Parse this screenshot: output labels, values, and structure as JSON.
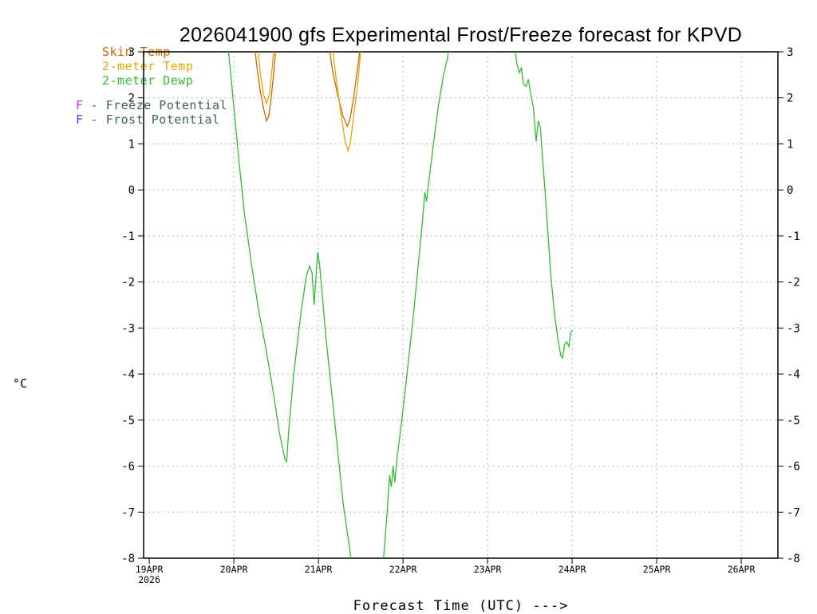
{
  "title": "2026041900 gfs Experimental Frost/Freeze forecast for KPVD",
  "axes": {
    "y_unit_label": "°C",
    "x_label": "Forecast Time (UTC) --->"
  },
  "legend": {
    "series": [
      {
        "label": "Skin Temp",
        "color": "#cc6600"
      },
      {
        "label": "2-meter Temp",
        "color": "#ddaa00"
      },
      {
        "label": "2-meter Dewp",
        "color": "#33bb33"
      }
    ],
    "flags": [
      {
        "letter": "F",
        "letter_color": "#cc33cc",
        "text": "- Freeze Potential"
      },
      {
        "letter": "F",
        "letter_color": "#4444ee",
        "text": "- Frost Potential"
      }
    ]
  },
  "chart_data": {
    "type": "line",
    "title": "2026041900 gfs Experimental Frost/Freeze forecast for KPVD",
    "xlabel": "Forecast Time (UTC) --->",
    "ylabel": "°C",
    "ylim": [
      -8,
      3
    ],
    "x_hours_visible": [
      -1.6,
      178.4
    ],
    "grid": "dotted",
    "legend_position": "top-left",
    "y_ticks": [
      {
        "value": 3,
        "label": "3"
      },
      {
        "value": 2,
        "label": "2"
      },
      {
        "value": 1,
        "label": "1"
      },
      {
        "value": 0,
        "label": "0"
      },
      {
        "value": -1,
        "label": "-1"
      },
      {
        "value": -2,
        "label": "-2"
      },
      {
        "value": -3,
        "label": "-3"
      },
      {
        "value": -4,
        "label": "-4"
      },
      {
        "value": -5,
        "label": "-5"
      },
      {
        "value": -6,
        "label": "-6"
      },
      {
        "value": -7,
        "label": "-7"
      },
      {
        "value": -8,
        "label": "-8"
      }
    ],
    "x_ticks": [
      {
        "hour": 0,
        "label": "19APR",
        "sublabel": "2026"
      },
      {
        "hour": 24,
        "label": "20APR"
      },
      {
        "hour": 48,
        "label": "21APR"
      },
      {
        "hour": 72,
        "label": "22APR"
      },
      {
        "hour": 96,
        "label": "23APR"
      },
      {
        "hour": 120,
        "label": "24APR"
      },
      {
        "hour": 144,
        "label": "25APR"
      },
      {
        "hour": 168,
        "label": "26APR"
      }
    ],
    "series": [
      {
        "name": "Skin Temp",
        "color": "#cc6600",
        "points": [
          [
            29.5,
            3.4
          ],
          [
            30.5,
            2.7
          ],
          [
            31.5,
            2.15
          ],
          [
            32.5,
            1.75
          ],
          [
            33.3,
            1.5
          ],
          [
            33.9,
            1.6
          ],
          [
            34.6,
            2.0
          ],
          [
            35.4,
            2.6
          ],
          [
            36.2,
            3.4
          ],
          [
            50.5,
            3.4
          ],
          [
            52,
            2.6
          ],
          [
            53.5,
            2.05
          ],
          [
            55,
            1.6
          ],
          [
            56.2,
            1.38
          ],
          [
            57,
            1.55
          ],
          [
            58,
            2.0
          ],
          [
            59.3,
            2.75
          ],
          [
            60.4,
            3.4
          ]
        ]
      },
      {
        "name": "2-meter Temp",
        "color": "#ddaa00",
        "points": [
          [
            30.5,
            3.4
          ],
          [
            31.4,
            2.6
          ],
          [
            32.4,
            2.08
          ],
          [
            33.3,
            1.88
          ],
          [
            34.1,
            2.1
          ],
          [
            34.9,
            2.65
          ],
          [
            35.7,
            3.4
          ],
          [
            51.5,
            3.4
          ],
          [
            53,
            2.45
          ],
          [
            54.5,
            1.6
          ],
          [
            55.6,
            1.05
          ],
          [
            56.4,
            0.85
          ],
          [
            57.1,
            1.05
          ],
          [
            58,
            1.6
          ],
          [
            59.1,
            2.25
          ],
          [
            60,
            3.0
          ],
          [
            60.7,
            3.4
          ]
        ]
      },
      {
        "name": "2-meter Dewp",
        "color": "#33bb33",
        "points": [
          [
            22,
            3.4
          ],
          [
            23,
            2.6
          ],
          [
            24,
            1.8
          ],
          [
            25.5,
            0.6
          ],
          [
            27,
            -0.5
          ],
          [
            29,
            -1.6
          ],
          [
            31,
            -2.6
          ],
          [
            33,
            -3.4
          ],
          [
            35,
            -4.3
          ],
          [
            37,
            -5.3
          ],
          [
            38.5,
            -5.85
          ],
          [
            39,
            -5.9
          ],
          [
            39.6,
            -5.2
          ],
          [
            41,
            -4.0
          ],
          [
            43,
            -2.7
          ],
          [
            44.5,
            -1.9
          ],
          [
            45.5,
            -1.65
          ],
          [
            46.2,
            -1.8
          ],
          [
            46.8,
            -2.5
          ],
          [
            47.3,
            -1.9
          ],
          [
            47.8,
            -1.35
          ],
          [
            48.3,
            -1.6
          ],
          [
            49,
            -2.2
          ],
          [
            50,
            -3.1
          ],
          [
            51.5,
            -4.2
          ],
          [
            53,
            -5.3
          ],
          [
            55,
            -6.8
          ],
          [
            56.5,
            -7.6
          ],
          [
            58,
            -8.4
          ],
          [
            66,
            -8.5
          ],
          [
            67.5,
            -7.0
          ],
          [
            68.2,
            -6.2
          ],
          [
            68.7,
            -6.45
          ],
          [
            69.2,
            -6.0
          ],
          [
            69.7,
            -6.35
          ],
          [
            70.2,
            -5.9
          ],
          [
            71.5,
            -5.1
          ],
          [
            73,
            -4.1
          ],
          [
            75,
            -2.7
          ],
          [
            76.5,
            -1.5
          ],
          [
            77.5,
            -0.7
          ],
          [
            78.2,
            -0.05
          ],
          [
            78.7,
            -0.25
          ],
          [
            79.2,
            0.1
          ],
          [
            80.5,
            0.9
          ],
          [
            82,
            1.8
          ],
          [
            83.5,
            2.5
          ],
          [
            84.6,
            2.85
          ],
          [
            85.6,
            3.4
          ],
          [
            103.4,
            3.4
          ],
          [
            104.3,
            2.75
          ],
          [
            105,
            2.55
          ],
          [
            105.6,
            2.65
          ],
          [
            106.2,
            2.3
          ],
          [
            107,
            2.25
          ],
          [
            107.6,
            2.4
          ],
          [
            108.2,
            2.1
          ],
          [
            109,
            1.8
          ],
          [
            109.8,
            1.05
          ],
          [
            110.4,
            1.5
          ],
          [
            111,
            1.35
          ],
          [
            111.6,
            0.7
          ],
          [
            112.4,
            -0.1
          ],
          [
            113.2,
            -1.0
          ],
          [
            114,
            -1.9
          ],
          [
            115,
            -2.7
          ],
          [
            116,
            -3.25
          ],
          [
            116.8,
            -3.6
          ],
          [
            117.3,
            -3.65
          ],
          [
            117.9,
            -3.35
          ],
          [
            118.5,
            -3.3
          ],
          [
            119.1,
            -3.4
          ],
          [
            119.6,
            -3.1
          ],
          [
            120,
            -3.05
          ]
        ]
      }
    ]
  }
}
